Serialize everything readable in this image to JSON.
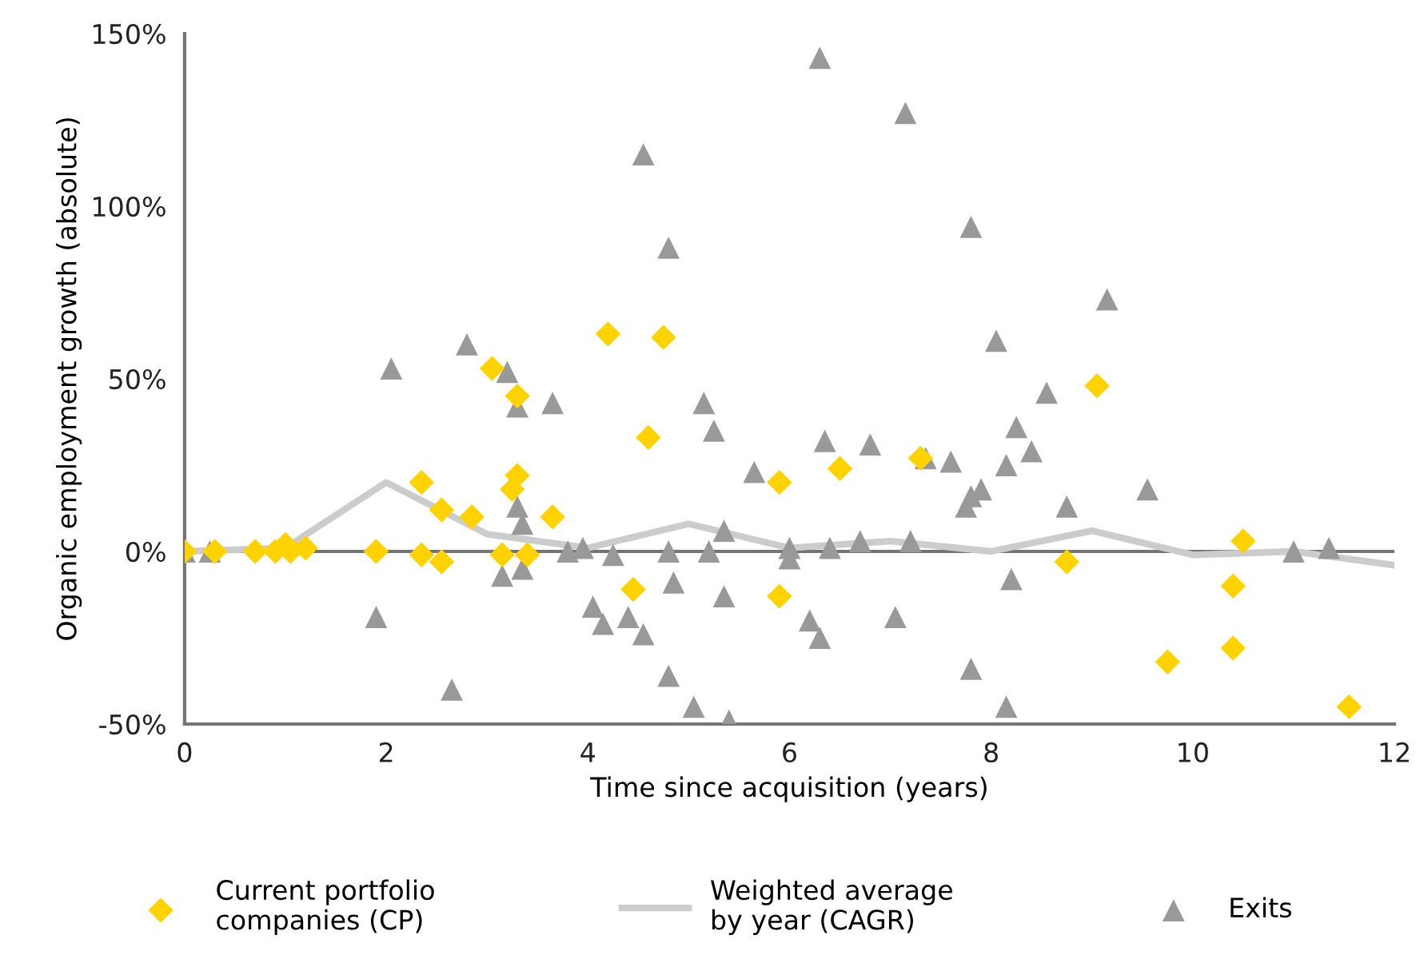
{
  "chart_data": {
    "type": "scatter",
    "xlabel": "Time since acquisition (years)",
    "ylabel": "Organic employment growth (absolute)",
    "xlim": [
      0,
      12
    ],
    "xticks": [
      0,
      2,
      4,
      6,
      8,
      10,
      12
    ],
    "ylim": [
      -50,
      150
    ],
    "yticks": [
      {
        "value": -50,
        "label": "-50%"
      },
      {
        "value": 0,
        "label": "0%"
      },
      {
        "value": 50,
        "label": "50%"
      },
      {
        "value": 100,
        "label": "100%"
      },
      {
        "value": 150,
        "label": "150%"
      }
    ],
    "grid": false,
    "legend": "bottom",
    "ref_lines": [
      {
        "axis": "y",
        "value": 0,
        "color": "#747474"
      }
    ],
    "series": [
      {
        "name": "Current portfolio\ncompanies (CP)",
        "marker": "diamond",
        "color": "#ffd200",
        "x": [
          0,
          0.3,
          0.7,
          0.9,
          1.0,
          1.05,
          1.2,
          1.9,
          2.35,
          2.35,
          2.55,
          2.55,
          2.85,
          3.05,
          3.15,
          3.25,
          3.3,
          3.3,
          3.4,
          3.65,
          4.2,
          4.45,
          4.6,
          4.75,
          5.9,
          5.9,
          6.5,
          7.3,
          8.75,
          9.05,
          9.75,
          10.4,
          10.4,
          10.5,
          11.55
        ],
        "values": [
          0,
          0,
          0,
          0,
          2,
          0,
          1,
          0,
          20,
          -1,
          12,
          -3,
          10,
          53,
          -1,
          18,
          22,
          45,
          -1,
          10,
          63,
          -11,
          33,
          62,
          -13,
          20,
          24,
          27,
          -3,
          48,
          -32,
          -28,
          -10,
          3,
          -45
        ]
      },
      {
        "name": "Weighted average\nby year (CAGR)",
        "type": "line",
        "marker": "none",
        "color": "#cccccc",
        "x": [
          0,
          1,
          2,
          3,
          4,
          5,
          6,
          7,
          8,
          9,
          10,
          11,
          12
        ],
        "values": [
          0,
          1,
          20,
          5,
          1,
          8,
          1,
          3,
          0,
          6,
          -1,
          0,
          -4
        ]
      },
      {
        "name": "Exits",
        "marker": "triangle",
        "color": "#999999",
        "x": [
          0,
          0.25,
          1.9,
          2.05,
          2.65,
          2.8,
          3.15,
          3.2,
          3.3,
          3.3,
          3.35,
          3.35,
          3.65,
          3.8,
          3.95,
          4.05,
          4.15,
          4.25,
          4.4,
          4.55,
          4.55,
          4.8,
          4.8,
          4.8,
          4.85,
          5.05,
          5.15,
          5.25,
          5.35,
          5.35,
          5.4,
          5.2,
          5.65,
          6.0,
          6.0,
          6.2,
          6.3,
          6.35,
          6.4,
          6.3,
          6.7,
          6.8,
          7.05,
          7.2,
          7.15,
          7.35,
          7.6,
          7.75,
          7.8,
          7.9,
          7.8,
          7.8,
          8.05,
          8.15,
          8.15,
          8.2,
          8.25,
          8.4,
          8.55,
          8.75,
          9.15,
          9.55,
          11.0,
          11.35
        ],
        "values": [
          0,
          0,
          -19,
          53,
          -40,
          60,
          -7,
          52,
          42,
          13,
          8,
          -5,
          43,
          0,
          1,
          -16,
          -21,
          -1,
          -19,
          -24,
          115,
          88,
          -36,
          0,
          -9,
          -45,
          43,
          35,
          6,
          -13,
          -49,
          0,
          23,
          -2,
          1,
          -20,
          -25,
          32,
          1,
          143,
          3,
          31,
          -19,
          3,
          127,
          27,
          26,
          13,
          16,
          18,
          94,
          -34,
          61,
          25,
          -45,
          -8,
          36,
          29,
          46,
          13,
          73,
          18,
          0,
          1
        ]
      }
    ]
  }
}
